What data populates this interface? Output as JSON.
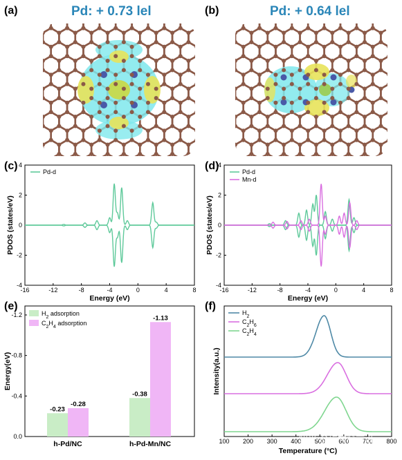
{
  "panels": {
    "a": {
      "label": "(a)",
      "charge": "Pd: + 0.73 lel"
    },
    "b": {
      "label": "(b)",
      "charge": "Pd: + 0.64 lel"
    },
    "c": {
      "label": "(c)"
    },
    "d": {
      "label": "(d)"
    },
    "e": {
      "label": "(e)"
    },
    "f": {
      "label": "(f)"
    }
  },
  "colors": {
    "pd_d": "#5ec99a",
    "mn_d": "#d96ee0",
    "h2_ads": "#c9edc6",
    "c2h4_ads": "#f0b6f6",
    "tpd_h2": "#4e89a6",
    "tpd_c2h6": "#d96ee0",
    "tpd_c2h4": "#7fd68f",
    "carbon": "#8b5a48",
    "iso_cyan": "#7fe8ec",
    "iso_yellow": "#e8e35a"
  },
  "chart_data": [
    {
      "id": "c",
      "type": "line",
      "xlabel": "Energy (eV)",
      "ylabel": "PDOS (states/eV)",
      "xlim": [
        -16,
        8
      ],
      "ylim": [
        -4,
        4
      ],
      "xticks": [
        "-16",
        "-12",
        "-8",
        "-4",
        "0",
        "4",
        "8"
      ],
      "yticks": [
        "-4",
        "-2",
        "0",
        "2",
        "4"
      ],
      "legend_position": "top-left",
      "series": [
        {
          "name": "Pd-d",
          "peaks": [
            [
              -10.5,
              0.05
            ],
            [
              -7.5,
              0.15
            ],
            [
              -5.8,
              0.3
            ],
            [
              -4.0,
              0.5
            ],
            [
              -3.35,
              2.75
            ],
            [
              -2.9,
              0.8
            ],
            [
              -2.3,
              2.5
            ],
            [
              -1.5,
              0.3
            ],
            [
              2.1,
              1.5
            ],
            [
              2.6,
              0.2
            ]
          ]
        }
      ]
    },
    {
      "id": "d",
      "type": "line",
      "xlabel": "Energy (eV)",
      "ylabel": "PDOS (states/eV)",
      "xlim": [
        -16,
        8
      ],
      "ylim": [
        -4,
        4
      ],
      "xticks": [
        "-16",
        "-12",
        "-8",
        "-4",
        "0",
        "4",
        "8"
      ],
      "yticks": [
        "-4",
        "-2",
        "0",
        "2",
        "4"
      ],
      "legend_position": "top-left",
      "series": [
        {
          "name": "Pd-d",
          "peaks": [
            [
              -9.5,
              0.1
            ],
            [
              -7.2,
              0.3
            ],
            [
              -5.3,
              0.8
            ],
            [
              -4.2,
              1.0
            ],
            [
              -3.3,
              1.4
            ],
            [
              -2.8,
              2.0
            ],
            [
              -1.5,
              0.9
            ],
            [
              -0.5,
              0.4
            ],
            [
              1.9,
              1.7
            ],
            [
              2.6,
              0.5
            ]
          ]
        },
        {
          "name": "Mn-d",
          "peaks": [
            [
              -9.0,
              0.2
            ],
            [
              -7.0,
              0.25
            ],
            [
              -5.0,
              0.3
            ],
            [
              -3.8,
              0.4
            ],
            [
              -2.1,
              2.75
            ],
            [
              -1.5,
              0.6
            ],
            [
              0.5,
              0.6
            ],
            [
              1.2,
              0.8
            ],
            [
              2.0,
              1.5
            ],
            [
              3.0,
              0.3
            ]
          ]
        }
      ]
    },
    {
      "id": "e",
      "type": "bar",
      "ylabel": "Energy(eV)",
      "ylim": [
        0,
        -1.2
      ],
      "yticks": [
        "0.0",
        "-0.4",
        "-0.8",
        "-1.2"
      ],
      "categories": [
        "h-Pd/NC",
        "h-Pd-Mn/NC"
      ],
      "legend_position": "top-left",
      "series": [
        {
          "name": "H2 adsorption",
          "values": [
            -0.23,
            -0.38
          ],
          "labels": [
            "-0.23",
            "-0.38"
          ]
        },
        {
          "name": "C2H4 adsorption",
          "values": [
            -0.28,
            -1.13
          ],
          "labels": [
            "-0.28",
            "-1.13"
          ]
        }
      ]
    },
    {
      "id": "f",
      "type": "line",
      "xlabel": "Temperature (°C)",
      "ylabel": "Intensity(a.u.)",
      "xlim": [
        100,
        800
      ],
      "xticks": [
        "100",
        "200",
        "300",
        "400",
        "500",
        "600",
        "700",
        "800"
      ],
      "legend_position": "top-left",
      "series": [
        {
          "name": "H2",
          "peak_x": 518,
          "height": 1.0
        },
        {
          "name": "C2H6",
          "peak_x": 575,
          "height": 0.8
        },
        {
          "name": "C2H4",
          "peak_x": 570,
          "height": 0.9
        }
      ]
    }
  ],
  "watermark": "知乎 @碳材料前沿"
}
